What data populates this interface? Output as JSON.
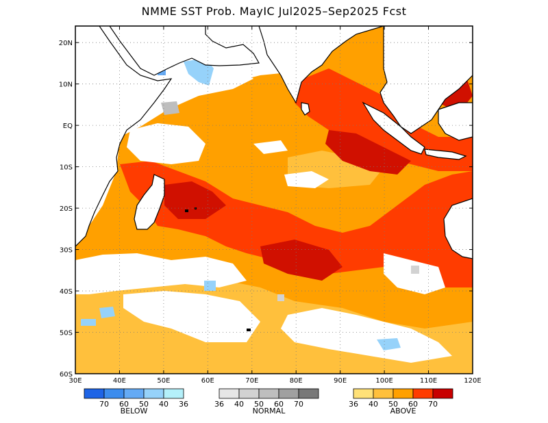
{
  "title": "NMME SST Prob. MayIC  Jul2025–Sep2025 Fcst",
  "map": {
    "lon_range": [
      30,
      120
    ],
    "lat_range": [
      -60,
      24
    ],
    "lon_ticks": [
      {
        "value": 30,
        "label": "30E"
      },
      {
        "value": 40,
        "label": "40E"
      },
      {
        "value": 50,
        "label": "50E"
      },
      {
        "value": 60,
        "label": "60E"
      },
      {
        "value": 70,
        "label": "70E"
      },
      {
        "value": 80,
        "label": "80E"
      },
      {
        "value": 90,
        "label": "90E"
      },
      {
        "value": 100,
        "label": "100E"
      },
      {
        "value": 110,
        "label": "110E"
      },
      {
        "value": 120,
        "label": "120E"
      }
    ],
    "lat_ticks": [
      {
        "value": 20,
        "label": "20N"
      },
      {
        "value": 10,
        "label": "10N"
      },
      {
        "value": 0,
        "label": "EQ"
      },
      {
        "value": -10,
        "label": "10S"
      },
      {
        "value": -20,
        "label": "20S"
      },
      {
        "value": -30,
        "label": "30S"
      },
      {
        "value": -40,
        "label": "40S"
      },
      {
        "value": -50,
        "label": "50S"
      },
      {
        "value": -60,
        "label": "60S"
      }
    ],
    "gridlines": true
  },
  "legends": [
    {
      "id": "below",
      "title": "BELOW",
      "colors": [
        "#1e64e6",
        "#3c8ced",
        "#64aaf5",
        "#96d2fa",
        "#b4f0fa"
      ],
      "labels": [
        "70",
        "60",
        "50",
        "40",
        "36"
      ]
    },
    {
      "id": "normal",
      "title": "NORMAL",
      "colors": [
        "#e6e6e6",
        "#d2d2d2",
        "#bebebe",
        "#a0a0a0",
        "#787878"
      ],
      "labels": [
        "36",
        "40",
        "50",
        "60",
        "70"
      ]
    },
    {
      "id": "above",
      "title": "ABOVE",
      "colors": [
        "#ffe178",
        "#ffc03c",
        "#ffa000",
        "#ff3c00",
        "#c80000"
      ],
      "labels": [
        "36",
        "40",
        "50",
        "60",
        "70"
      ]
    }
  ]
}
